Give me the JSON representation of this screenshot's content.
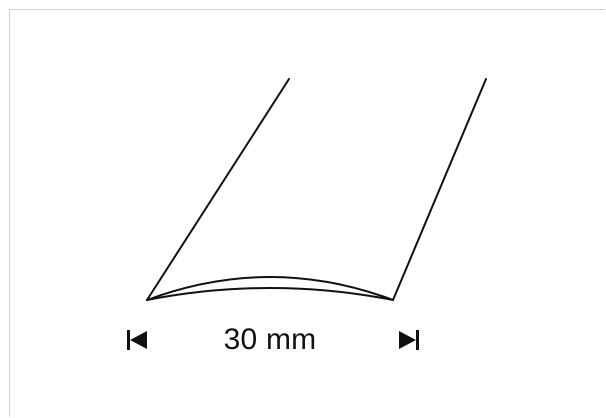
{
  "dimension": {
    "label": "30 mm"
  },
  "colors": {
    "stroke": "#111111",
    "border": "#cfcfcf",
    "background": "#ffffff"
  },
  "icons": {
    "left_marker": "dimension-stop-left-icon",
    "right_marker": "dimension-stop-right-icon"
  }
}
